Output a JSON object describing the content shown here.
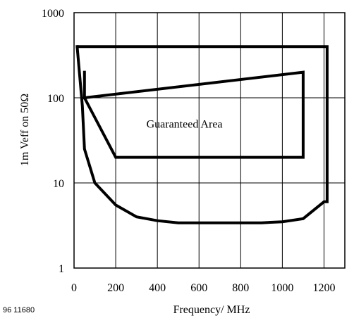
{
  "chart_data": {
    "type": "line",
    "title": "",
    "xlabel": "Frequency/ MHz",
    "ylabel": "1m Veff on 50Ω",
    "xlim": [
      0,
      1300
    ],
    "ylim": [
      1,
      1000
    ],
    "y_scale": "log",
    "grid": true,
    "x_ticks": [
      0,
      200,
      400,
      600,
      800,
      1000,
      1200
    ],
    "x_tick_labels": [
      "0",
      "200",
      "400",
      "600",
      "800",
      "1000",
      "1200"
    ],
    "y_ticks": [
      1,
      10,
      100,
      1000
    ],
    "y_tick_labels": [
      "1",
      "10",
      "100",
      "1000"
    ],
    "series": [
      {
        "x": [
          15,
          40,
          50,
          100,
          200,
          300,
          400,
          500,
          600,
          700,
          800,
          900,
          1000,
          1100,
          1200,
          1215,
          1215,
          15
        ],
        "y": [
          400,
          80,
          25,
          10,
          5.5,
          4.0,
          3.6,
          3.4,
          3.4,
          3.4,
          3.4,
          3.4,
          3.5,
          3.8,
          6,
          6,
          400,
          400
        ]
      },
      {
        "x": [
          50,
          50,
          1100,
          1100,
          200,
          50
        ],
        "y": [
          200,
          100,
          200,
          20,
          20,
          100
        ]
      }
    ],
    "annotations": [
      {
        "text": "Guaranteed Area",
        "x": 530,
        "y": 50
      }
    ]
  },
  "figure_id": "96 11680"
}
